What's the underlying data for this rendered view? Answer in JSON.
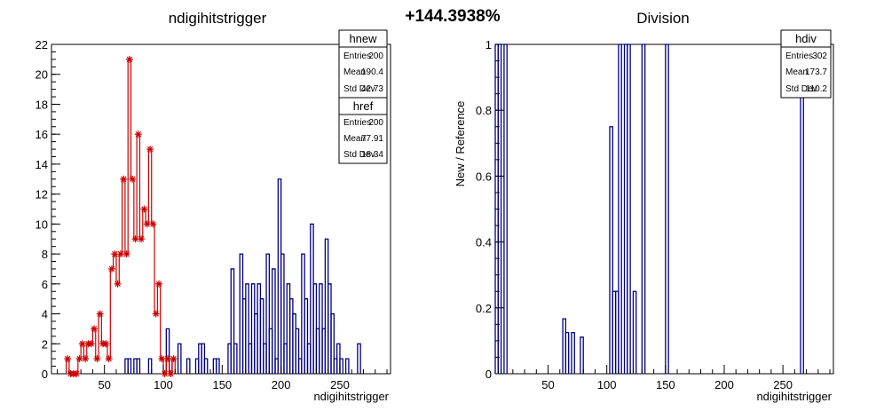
{
  "header": {
    "percent": "+144.3938%"
  },
  "left_panel": {
    "title": "ndigihitstrigger",
    "xlabel": "ndigihitstrigger",
    "x_ticks": [
      "50",
      "100",
      "150",
      "200",
      "250"
    ],
    "y_ticks": [
      "0",
      "2",
      "4",
      "6",
      "8",
      "10",
      "12",
      "14",
      "16",
      "18",
      "20",
      "22"
    ]
  },
  "right_panel": {
    "title": "Division",
    "xlabel": "ndigihitstrigger",
    "ylabel": "New / Reference",
    "x_ticks": [
      "50",
      "100",
      "150",
      "200",
      "250"
    ],
    "y_ticks": [
      "0",
      "0.2",
      "0.4",
      "0.6",
      "0.8",
      "1"
    ]
  },
  "stats": {
    "hnew": {
      "title": "hnew",
      "rows": [
        {
          "label": "Entries",
          "value": "200"
        },
        {
          "label": "Mean",
          "value": "190.4"
        },
        {
          "label": "Std Dev",
          "value": "42.73"
        }
      ]
    },
    "href": {
      "title": "href",
      "rows": [
        {
          "label": "Entries",
          "value": "200"
        },
        {
          "label": "Mean",
          "value": "77.91"
        },
        {
          "label": "Std Dev",
          "value": "18.34"
        }
      ]
    },
    "hdiv": {
      "title": "hdiv",
      "rows": [
        {
          "label": "Entries",
          "value": "302"
        },
        {
          "label": "Mean",
          "value": "173.7"
        },
        {
          "label": "Std Dev",
          "value": "110.2"
        }
      ]
    }
  },
  "colors": {
    "new": "#000080",
    "ref": "#cc0000",
    "axis": "#000000"
  },
  "chart_data": [
    {
      "type": "histogram",
      "title": "ndigihitstrigger",
      "xlabel": "ndigihitstrigger",
      "ylabel": "",
      "xlim": [
        5,
        293
      ],
      "ylim": [
        0,
        22
      ],
      "bin_width": 2.5,
      "series": [
        {
          "name": "hnew",
          "bins": [
            {
              "x": 67.5,
              "y": 1
            },
            {
              "x": 70,
              "y": 1
            },
            {
              "x": 75,
              "y": 1
            },
            {
              "x": 77.5,
              "y": 1
            },
            {
              "x": 87.5,
              "y": 1
            },
            {
              "x": 102.5,
              "y": 3
            },
            {
              "x": 105,
              "y": 1
            },
            {
              "x": 112.5,
              "y": 2
            },
            {
              "x": 120,
              "y": 1
            },
            {
              "x": 127.5,
              "y": 1
            },
            {
              "x": 130,
              "y": 2
            },
            {
              "x": 132.5,
              "y": 2
            },
            {
              "x": 135,
              "y": 1
            },
            {
              "x": 142.5,
              "y": 1
            },
            {
              "x": 145,
              "y": 1
            },
            {
              "x": 155,
              "y": 2
            },
            {
              "x": 157.5,
              "y": 7
            },
            {
              "x": 160,
              "y": 2
            },
            {
              "x": 165,
              "y": 8
            },
            {
              "x": 167.5,
              "y": 5
            },
            {
              "x": 170,
              "y": 6
            },
            {
              "x": 172.5,
              "y": 2
            },
            {
              "x": 175,
              "y": 6
            },
            {
              "x": 177.5,
              "y": 4
            },
            {
              "x": 180,
              "y": 6
            },
            {
              "x": 182.5,
              "y": 5
            },
            {
              "x": 185,
              "y": 2
            },
            {
              "x": 187.5,
              "y": 8
            },
            {
              "x": 190,
              "y": 3
            },
            {
              "x": 192.5,
              "y": 7
            },
            {
              "x": 195,
              "y": 1
            },
            {
              "x": 197.5,
              "y": 13
            },
            {
              "x": 200,
              "y": 8
            },
            {
              "x": 202.5,
              "y": 2
            },
            {
              "x": 205,
              "y": 6
            },
            {
              "x": 207.5,
              "y": 5
            },
            {
              "x": 210,
              "y": 4
            },
            {
              "x": 212.5,
              "y": 3
            },
            {
              "x": 215,
              "y": 1
            },
            {
              "x": 217.5,
              "y": 8
            },
            {
              "x": 220,
              "y": 5
            },
            {
              "x": 222.5,
              "y": 2
            },
            {
              "x": 225,
              "y": 10
            },
            {
              "x": 227.5,
              "y": 6
            },
            {
              "x": 230,
              "y": 3
            },
            {
              "x": 232.5,
              "y": 6
            },
            {
              "x": 235,
              "y": 3
            },
            {
              "x": 237.5,
              "y": 9
            },
            {
              "x": 240,
              "y": 6
            },
            {
              "x": 242.5,
              "y": 4
            },
            {
              "x": 245,
              "y": 1
            },
            {
              "x": 247.5,
              "y": 2
            },
            {
              "x": 250,
              "y": 1
            },
            {
              "x": 255,
              "y": 1
            },
            {
              "x": 265,
              "y": 2
            }
          ]
        },
        {
          "name": "href",
          "points": [
            {
              "x": 17.5,
              "y": 1
            },
            {
              "x": 20,
              "y": 0
            },
            {
              "x": 22.5,
              "y": 0
            },
            {
              "x": 25,
              "y": 0
            },
            {
              "x": 27.5,
              "y": 1
            },
            {
              "x": 30,
              "y": 2
            },
            {
              "x": 32.5,
              "y": 1
            },
            {
              "x": 35,
              "y": 2
            },
            {
              "x": 37.5,
              "y": 2
            },
            {
              "x": 40,
              "y": 3
            },
            {
              "x": 42.5,
              "y": 1
            },
            {
              "x": 45,
              "y": 4
            },
            {
              "x": 47.5,
              "y": 2
            },
            {
              "x": 50,
              "y": 2
            },
            {
              "x": 52.5,
              "y": 1
            },
            {
              "x": 55,
              "y": 7
            },
            {
              "x": 57.5,
              "y": 8
            },
            {
              "x": 60,
              "y": 6
            },
            {
              "x": 62.5,
              "y": 8
            },
            {
              "x": 65,
              "y": 13
            },
            {
              "x": 67.5,
              "y": 8
            },
            {
              "x": 70,
              "y": 21
            },
            {
              "x": 72.5,
              "y": 13
            },
            {
              "x": 75,
              "y": 9
            },
            {
              "x": 77.5,
              "y": 16
            },
            {
              "x": 80,
              "y": 9
            },
            {
              "x": 82.5,
              "y": 11
            },
            {
              "x": 85,
              "y": 10
            },
            {
              "x": 87.5,
              "y": 15
            },
            {
              "x": 90,
              "y": 10
            },
            {
              "x": 92.5,
              "y": 4
            },
            {
              "x": 95,
              "y": 6
            },
            {
              "x": 97.5,
              "y": 1
            },
            {
              "x": 100,
              "y": 0
            },
            {
              "x": 102.5,
              "y": 1
            },
            {
              "x": 105,
              "y": 0
            },
            {
              "x": 107.5,
              "y": 1
            }
          ]
        }
      ]
    },
    {
      "type": "histogram",
      "title": "Division",
      "xlabel": "ndigihitstrigger",
      "ylabel": "New / Reference",
      "xlim": [
        5,
        293
      ],
      "ylim": [
        0,
        1.0
      ],
      "bin_width": 2.5,
      "series": [
        {
          "name": "hdiv",
          "bins": [
            {
              "x": 5,
              "y": 1
            },
            {
              "x": 7.5,
              "y": 1
            },
            {
              "x": 12.5,
              "y": 1
            },
            {
              "x": 62.5,
              "y": 0.1667
            },
            {
              "x": 65,
              "y": 0.125
            },
            {
              "x": 70,
              "y": 0.125
            },
            {
              "x": 77.5,
              "y": 0.111
            },
            {
              "x": 102.5,
              "y": 0.75
            },
            {
              "x": 105,
              "y": 0.25
            },
            {
              "x": 107.5,
              "y": 0.25
            },
            {
              "x": 110,
              "y": 1
            },
            {
              "x": 115,
              "y": 1
            },
            {
              "x": 117.5,
              "y": 1
            },
            {
              "x": 122.5,
              "y": 0.25
            },
            {
              "x": 130,
              "y": 1
            },
            {
              "x": 150,
              "y": 1
            },
            {
              "x": 265,
              "y": 1
            }
          ]
        }
      ]
    }
  ]
}
